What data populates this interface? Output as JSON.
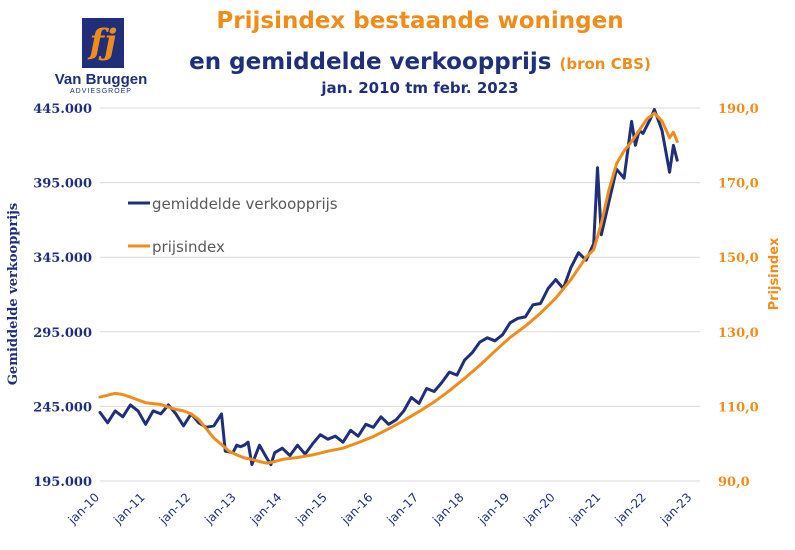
{
  "logo": {
    "glyph": "fj",
    "name": "Van Bruggen",
    "sub": "ADVIESGROEP"
  },
  "title_line1": "Prijsindex bestaande woningen",
  "title_line2": "en gemiddelde verkoopprijs",
  "title_source": "(bron CBS)",
  "subtitle": "jan. 2010 tm febr. 2023",
  "colors": {
    "price": "#1f2f7a",
    "index": "#f08c1a",
    "grid": "#d9d9d9"
  },
  "chart_data": {
    "type": "line",
    "x_unit": "months since jan-10",
    "x_tick_labels": [
      "jan-10",
      "jan-11",
      "jan-12",
      "jan-13",
      "jan-14",
      "jan-15",
      "jan-16",
      "jan-17",
      "jan-18",
      "jan-19",
      "jan-20",
      "jan-21",
      "jan-22",
      "jan-23"
    ],
    "ylabel_left": "Gemiddelde verkoopprijs",
    "ylabel_right": "Prijsindex",
    "ylim_left": [
      195000,
      445000
    ],
    "ylim_right": [
      90,
      190
    ],
    "yticks_left": [
      "195.000",
      "245.000",
      "295.000",
      "345.000",
      "395.000",
      "445.000"
    ],
    "yticks_right": [
      "90,0",
      "110,0",
      "130,0",
      "150,0",
      "170,0",
      "190,0"
    ],
    "legend_position": "upper-left",
    "grid": true,
    "series": [
      {
        "name": "gemiddelde verkoopprijs",
        "axis": "left",
        "points": [
          [
            0,
            241000
          ],
          [
            2,
            234000
          ],
          [
            4,
            242000
          ],
          [
            6,
            238000
          ],
          [
            8,
            246000
          ],
          [
            10,
            242000
          ],
          [
            12,
            233000
          ],
          [
            14,
            242000
          ],
          [
            16,
            240000
          ],
          [
            18,
            246000
          ],
          [
            20,
            240000
          ],
          [
            22,
            232000
          ],
          [
            24,
            240000
          ],
          [
            26,
            234000
          ],
          [
            28,
            231000
          ],
          [
            30,
            232000
          ],
          [
            32,
            240000
          ],
          [
            33,
            215000
          ],
          [
            35,
            214000
          ],
          [
            36,
            219000
          ],
          [
            37,
            218000
          ],
          [
            38,
            219000
          ],
          [
            39,
            221000
          ],
          [
            40,
            206000
          ],
          [
            42,
            219000
          ],
          [
            44,
            210000
          ],
          [
            45,
            206000
          ],
          [
            46,
            214000
          ],
          [
            48,
            217000
          ],
          [
            50,
            212000
          ],
          [
            52,
            219000
          ],
          [
            54,
            213000
          ],
          [
            56,
            220000
          ],
          [
            58,
            226000
          ],
          [
            60,
            223000
          ],
          [
            62,
            225000
          ],
          [
            64,
            221000
          ],
          [
            66,
            229000
          ],
          [
            68,
            225000
          ],
          [
            70,
            233000
          ],
          [
            72,
            231000
          ],
          [
            74,
            238000
          ],
          [
            76,
            233000
          ],
          [
            78,
            236000
          ],
          [
            80,
            242000
          ],
          [
            82,
            251000
          ],
          [
            84,
            247000
          ],
          [
            86,
            257000
          ],
          [
            88,
            255000
          ],
          [
            90,
            261000
          ],
          [
            92,
            268000
          ],
          [
            94,
            266000
          ],
          [
            96,
            276000
          ],
          [
            98,
            281000
          ],
          [
            100,
            288000
          ],
          [
            102,
            291000
          ],
          [
            104,
            289000
          ],
          [
            106,
            293000
          ],
          [
            108,
            301000
          ],
          [
            110,
            304000
          ],
          [
            112,
            305000
          ],
          [
            114,
            313000
          ],
          [
            116,
            314000
          ],
          [
            118,
            324000
          ],
          [
            120,
            330000
          ],
          [
            122,
            324000
          ],
          [
            124,
            338000
          ],
          [
            126,
            348000
          ],
          [
            128,
            343000
          ],
          [
            130,
            354000
          ],
          [
            131,
            405000
          ],
          [
            132,
            360000
          ],
          [
            134,
            382000
          ],
          [
            136,
            404000
          ],
          [
            138,
            398000
          ],
          [
            140,
            436000
          ],
          [
            141,
            420000
          ],
          [
            142,
            430000
          ],
          [
            143,
            428000
          ],
          [
            145,
            438000
          ],
          [
            146,
            444000
          ],
          [
            148,
            430000
          ],
          [
            150,
            402000
          ],
          [
            151,
            420000
          ],
          [
            152,
            410000
          ]
        ]
      },
      {
        "name": "prijsindex",
        "axis": "right",
        "points": [
          [
            0,
            112.5
          ],
          [
            4,
            113.5
          ],
          [
            6,
            113.2
          ],
          [
            8,
            112.5
          ],
          [
            12,
            111.0
          ],
          [
            16,
            110.5
          ],
          [
            18,
            109.8
          ],
          [
            20,
            109.2
          ],
          [
            22,
            108.8
          ],
          [
            24,
            108.0
          ],
          [
            26,
            106.5
          ],
          [
            28,
            104.0
          ],
          [
            30,
            101.5
          ],
          [
            32,
            99.8
          ],
          [
            34,
            98.0
          ],
          [
            36,
            97.0
          ],
          [
            38,
            96.2
          ],
          [
            40,
            95.8
          ],
          [
            42,
            95.2
          ],
          [
            44,
            94.8
          ],
          [
            46,
            95.2
          ],
          [
            48,
            95.8
          ],
          [
            52,
            96.3
          ],
          [
            56,
            97.0
          ],
          [
            60,
            98.0
          ],
          [
            64,
            98.8
          ],
          [
            68,
            100.3
          ],
          [
            72,
            101.9
          ],
          [
            76,
            104.0
          ],
          [
            80,
            106.2
          ],
          [
            84,
            108.6
          ],
          [
            88,
            111.2
          ],
          [
            92,
            114.2
          ],
          [
            96,
            117.5
          ],
          [
            100,
            121.0
          ],
          [
            104,
            124.8
          ],
          [
            108,
            128.5
          ],
          [
            112,
            131.5
          ],
          [
            116,
            135.0
          ],
          [
            120,
            139.0
          ],
          [
            124,
            144.0
          ],
          [
            128,
            150.0
          ],
          [
            130,
            152.0
          ],
          [
            132,
            159.0
          ],
          [
            134,
            168.0
          ],
          [
            136,
            175.0
          ],
          [
            138,
            178.5
          ],
          [
            140,
            181.0
          ],
          [
            142,
            184.0
          ],
          [
            144,
            187.0
          ],
          [
            146,
            188.6
          ],
          [
            148,
            186.5
          ],
          [
            150,
            182.0
          ],
          [
            151,
            183.5
          ],
          [
            152,
            181.0
          ]
        ]
      }
    ]
  }
}
